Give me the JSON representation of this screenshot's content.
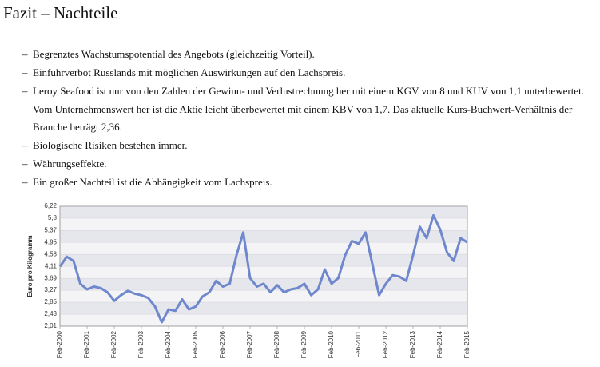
{
  "title": "Fazit – Nachteile",
  "bullets": [
    "Begrenztes Wachstumspotential des Angebots (gleichzeitig Vorteil).",
    "Einfuhrverbot Russlands mit möglichen Auswirkungen auf den Lachspreis.",
    "Leroy Seafood ist nur von den Zahlen der Gewinn- und Verlustrechnung her mit einem KGV von 8 und KUV von 1,1 unterbewertet. Vom Unternehmenswert her ist die Aktie leicht überbewertet mit einem KBV von 1,7. Das aktuelle Kurs-Buchwert-Verhältnis der Branche beträgt 2,36.",
    "Biologische Risiken bestehen immer.",
    "Währungseffekte.",
    "Ein großer Nachteil ist die Abhängigkeit vom Lachspreis."
  ],
  "chart_data": {
    "type": "line",
    "y_label": "Euro pro Kilogramm",
    "color": "#6f87cc",
    "x": [
      "2000-02",
      "2000-05",
      "2000-08",
      "2000-11",
      "2001-02",
      "2001-05",
      "2001-08",
      "2001-11",
      "2002-02",
      "2002-05",
      "2002-08",
      "2002-11",
      "2003-02",
      "2003-05",
      "2003-08",
      "2003-11",
      "2004-02",
      "2004-05",
      "2004-08",
      "2004-11",
      "2005-02",
      "2005-05",
      "2005-08",
      "2005-11",
      "2006-02",
      "2006-05",
      "2006-08",
      "2006-11",
      "2007-02",
      "2007-05",
      "2007-08",
      "2007-11",
      "2008-02",
      "2008-05",
      "2008-08",
      "2008-11",
      "2009-02",
      "2009-05",
      "2009-08",
      "2009-11",
      "2010-02",
      "2010-05",
      "2010-08",
      "2010-11",
      "2011-02",
      "2011-05",
      "2011-08",
      "2011-11",
      "2012-02",
      "2012-05",
      "2012-08",
      "2012-11",
      "2013-02",
      "2013-05",
      "2013-08",
      "2013-11",
      "2014-02",
      "2014-05",
      "2014-08",
      "2014-11",
      "2015-02"
    ],
    "values": [
      4.1,
      4.45,
      4.3,
      3.5,
      3.3,
      3.4,
      3.35,
      3.2,
      2.9,
      3.1,
      3.25,
      3.15,
      3.1,
      3.0,
      2.7,
      2.15,
      2.6,
      2.55,
      2.95,
      2.6,
      2.7,
      3.05,
      3.2,
      3.6,
      3.4,
      3.5,
      4.5,
      5.3,
      3.7,
      3.4,
      3.5,
      3.2,
      3.45,
      3.2,
      3.3,
      3.35,
      3.5,
      3.1,
      3.3,
      4.0,
      3.5,
      3.7,
      4.5,
      5.0,
      4.9,
      5.3,
      4.2,
      3.1,
      3.5,
      3.8,
      3.75,
      3.6,
      4.5,
      5.5,
      5.1,
      5.9,
      5.4,
      4.6,
      4.3,
      5.1,
      4.95
    ],
    "ylim": [
      2.01,
      6.22
    ],
    "yticks": [
      {
        "value": 2.01,
        "label": "2,01"
      },
      {
        "value": 2.43,
        "label": "2,43"
      },
      {
        "value": 2.85,
        "label": "2,85"
      },
      {
        "value": 3.27,
        "label": "3,27"
      },
      {
        "value": 3.69,
        "label": "3,69"
      },
      {
        "value": 4.11,
        "label": "4,11"
      },
      {
        "value": 4.53,
        "label": "4,53"
      },
      {
        "value": 4.95,
        "label": "4,95"
      },
      {
        "value": 5.37,
        "label": "5,37"
      },
      {
        "value": 5.8,
        "label": "5,8"
      },
      {
        "value": 6.22,
        "label": "6,22"
      }
    ],
    "xticks": [
      {
        "value": "2000-02",
        "label": "Feb-2000"
      },
      {
        "value": "2001-02",
        "label": "Feb-2001"
      },
      {
        "value": "2002-02",
        "label": "Feb-2002"
      },
      {
        "value": "2003-02",
        "label": "Feb-2003"
      },
      {
        "value": "2004-02",
        "label": "Feb-2004"
      },
      {
        "value": "2005-02",
        "label": "Feb-2005"
      },
      {
        "value": "2006-02",
        "label": "Feb-2006"
      },
      {
        "value": "2007-02",
        "label": "Feb-2007"
      },
      {
        "value": "2008-02",
        "label": "Feb-2008"
      },
      {
        "value": "2009-02",
        "label": "Feb-2009"
      },
      {
        "value": "2010-02",
        "label": "Feb-2010"
      },
      {
        "value": "2011-02",
        "label": "Feb-2011"
      },
      {
        "value": "2012-02",
        "label": "Feb-2012"
      },
      {
        "value": "2013-02",
        "label": "Feb-2013"
      },
      {
        "value": "2014-02",
        "label": "Feb-2014"
      },
      {
        "value": "2015-02",
        "label": "Feb-2015"
      }
    ],
    "grid": true
  }
}
